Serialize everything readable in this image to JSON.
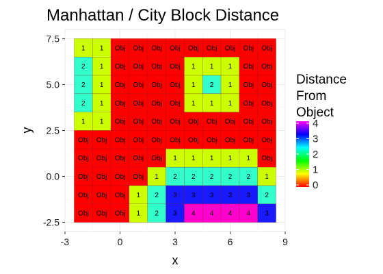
{
  "chart_data": {
    "type": "heatmap",
    "title": "Manhattan / City Block Distance",
    "xlabel": "x",
    "ylabel": "y",
    "xlim": [
      -3,
      9
    ],
    "ylim": [
      -3,
      8
    ],
    "xticks": [
      -3,
      0,
      3,
      6,
      9
    ],
    "yticks": [
      -2.5,
      0.0,
      2.5,
      5.0,
      7.5
    ],
    "ytick_labels": [
      "-2.5",
      "0.0",
      "2.5",
      "5.0",
      "7.5"
    ],
    "grid": true,
    "legend": {
      "title": [
        "Distance",
        "From",
        "Object"
      ],
      "ticks": [
        0,
        1,
        2,
        3,
        4
      ],
      "placement": "right",
      "colors": [
        "#ff0000",
        "#ffff00",
        "#00ff00",
        "#00ffff",
        "#0000ff",
        "#ff00ff"
      ]
    },
    "cell_size": 1,
    "x": [
      -2,
      -1,
      0,
      1,
      2,
      3,
      4,
      5,
      6,
      7,
      8
    ],
    "y": [
      7,
      6,
      5,
      4,
      3,
      2,
      1,
      0,
      -1,
      -2
    ],
    "rows": [
      [
        "1",
        "1",
        "Obj",
        "Obj",
        "Obj",
        "Obj",
        "Obj",
        "Obj",
        "Obj",
        "Obj",
        "Obj"
      ],
      [
        "2",
        "1",
        "Obj",
        "Obj",
        "Obj",
        "Obj",
        "1",
        "1",
        "1",
        "Obj",
        "Obj"
      ],
      [
        "2",
        "1",
        "Obj",
        "Obj",
        "Obj",
        "Obj",
        "1",
        "2",
        "1",
        "Obj",
        "Obj"
      ],
      [
        "2",
        "1",
        "Obj",
        "Obj",
        "Obj",
        "Obj",
        "1",
        "1",
        "1",
        "Obj",
        "Obj"
      ],
      [
        "1",
        "1",
        "Obj",
        "Obj",
        "Obj",
        "Obj",
        "Obj",
        "Obj",
        "Obj",
        "Obj",
        "Obj"
      ],
      [
        "Obj",
        "Obj",
        "Obj",
        "Obj",
        "Obj",
        "Obj",
        "Obj",
        "Obj",
        "Obj",
        "Obj",
        "Obj"
      ],
      [
        "Obj",
        "Obj",
        "Obj",
        "Obj",
        "Obj",
        "1",
        "1",
        "1",
        "1",
        "1",
        "Obj"
      ],
      [
        "Obj",
        "Obj",
        "Obj",
        "Obj",
        "1",
        "2",
        "2",
        "2",
        "2",
        "2",
        "1"
      ],
      [
        "Obj",
        "Obj",
        "Obj",
        "1",
        "2",
        "3",
        "3",
        "3",
        "3",
        "3",
        "2"
      ],
      [
        "Obj",
        "Obj",
        "Obj",
        "1",
        "2",
        "3",
        "4",
        "4",
        "4",
        "4",
        "3"
      ]
    ]
  }
}
